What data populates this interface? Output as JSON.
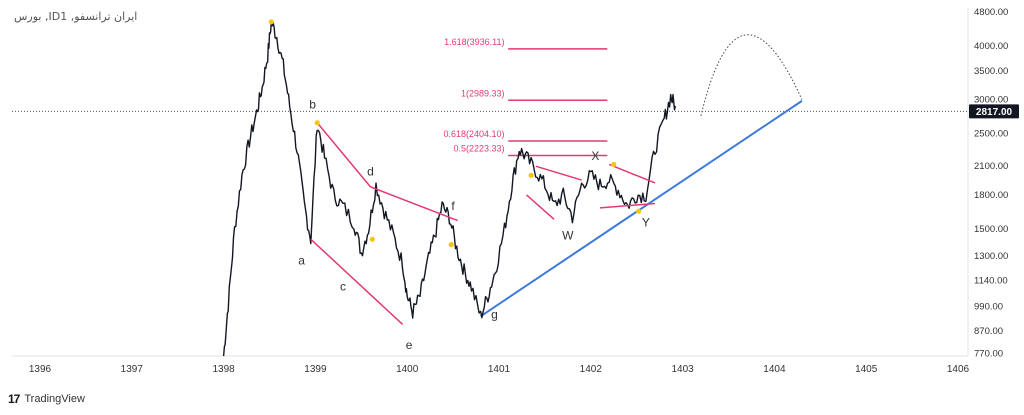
{
  "chart_data": {
    "type": "line",
    "title": "",
    "symbol_label": "بورس ,IDایران ترانسفو, 1",
    "xlabel": "",
    "ylabel": "",
    "scale": "log",
    "ylim": [
      760,
      4900
    ],
    "x_ticks": [
      "1396",
      "1397",
      "1398",
      "1399",
      "1400",
      "1401",
      "1402",
      "1403",
      "1404",
      "1405",
      "1406"
    ],
    "y_ticks": [
      "4800.00",
      "4000.00",
      "3500.00",
      "3000.00",
      "2500.00",
      "2100.00",
      "1800.00",
      "1500.00",
      "1300.00",
      "1140.00",
      "990.00",
      "870.00",
      "770.00"
    ],
    "current_price": "2817.00",
    "price_color": "#131722",
    "grid": false,
    "series": [
      {
        "color": "#131722",
        "values": [
          [
            1398.0,
            760
          ],
          [
            1398.05,
            1000
          ],
          [
            1398.12,
            1500
          ],
          [
            1398.2,
            2000
          ],
          [
            1398.28,
            2400
          ],
          [
            1398.36,
            2800
          ],
          [
            1398.42,
            3200
          ],
          [
            1398.48,
            3800
          ],
          [
            1398.52,
            4550
          ],
          [
            1398.58,
            4200
          ],
          [
            1398.65,
            3600
          ],
          [
            1398.72,
            2900
          ],
          [
            1398.8,
            2300
          ],
          [
            1398.88,
            1700
          ],
          [
            1398.95,
            1420
          ],
          [
            1399.02,
            2650
          ],
          [
            1399.1,
            2200
          ],
          [
            1399.2,
            1800
          ],
          [
            1399.3,
            1700
          ],
          [
            1399.42,
            1550
          ],
          [
            1399.5,
            1320
          ],
          [
            1399.58,
            1500
          ],
          [
            1399.66,
            1900
          ],
          [
            1399.75,
            1650
          ],
          [
            1399.85,
            1450
          ],
          [
            1399.95,
            1250
          ],
          [
            1400.0,
            1050
          ],
          [
            1400.06,
            960
          ],
          [
            1400.14,
            1050
          ],
          [
            1400.22,
            1250
          ],
          [
            1400.3,
            1450
          ],
          [
            1400.38,
            1700
          ],
          [
            1400.46,
            1600
          ],
          [
            1400.54,
            1350
          ],
          [
            1400.62,
            1200
          ],
          [
            1400.7,
            1100
          ],
          [
            1400.8,
            940
          ],
          [
            1400.88,
            1050
          ],
          [
            1400.96,
            1200
          ],
          [
            1401.06,
            1500
          ],
          [
            1401.14,
            1900
          ],
          [
            1401.22,
            2300
          ],
          [
            1401.3,
            2200
          ],
          [
            1401.4,
            2050
          ],
          [
            1401.5,
            1900
          ],
          [
            1401.6,
            1700
          ],
          [
            1401.7,
            1800
          ],
          [
            1401.8,
            1600
          ],
          [
            1401.9,
            1900
          ],
          [
            1402.0,
            2000
          ],
          [
            1402.1,
            1900
          ],
          [
            1402.2,
            1950
          ],
          [
            1402.3,
            1850
          ],
          [
            1402.4,
            1700
          ],
          [
            1402.5,
            1800
          ],
          [
            1402.6,
            1800
          ],
          [
            1402.7,
            2300
          ],
          [
            1402.8,
            2700
          ],
          [
            1402.87,
            3050
          ],
          [
            1402.92,
            2900
          ]
        ]
      }
    ],
    "projection": {
      "style": "dotted",
      "values": [
        [
          1403.2,
          2750
        ],
        [
          1403.7,
          3900
        ],
        [
          1404.3,
          3000
        ]
      ]
    },
    "trendline": {
      "color": "#3d7bd9",
      "from": [
        1400.8,
        940
      ],
      "to": [
        1404.3,
        2980
      ]
    },
    "fibonacci": {
      "color": "#e23a73",
      "levels": [
        {
          "label": "1.618(3936.11)",
          "value": 3936.11
        },
        {
          "label": "1(2989.33)",
          "value": 2989.33
        },
        {
          "label": "0.618(2404.10)",
          "value": 2404.1
        },
        {
          "label": "0.5(2223.33)",
          "value": 2223.33
        }
      ]
    },
    "wave_lines": {
      "color": "#e23a73",
      "segments": [
        [
          [
            1398.95,
            1420
          ],
          [
            1399.95,
            900
          ]
        ],
        [
          [
            1399.02,
            2650
          ],
          [
            1399.6,
            1880
          ]
        ],
        [
          [
            1399.6,
            1880
          ],
          [
            1400.55,
            1570
          ]
        ],
        [
          [
            1401.3,
            1800
          ],
          [
            1401.6,
            1580
          ]
        ],
        [
          [
            1401.4,
            2100
          ],
          [
            1401.9,
            1950
          ]
        ],
        [
          [
            1402.2,
            2120
          ],
          [
            1402.7,
            1920
          ]
        ],
        [
          [
            1402.1,
            1680
          ],
          [
            1402.7,
            1720
          ]
        ]
      ]
    },
    "annotations": [
      {
        "text": "a",
        "x": 1398.85,
        "y": 1240
      },
      {
        "text": "b",
        "x": 1398.97,
        "y": 2860
      },
      {
        "text": "c",
        "x": 1399.3,
        "y": 1080
      },
      {
        "text": "d",
        "x": 1399.6,
        "y": 2000
      },
      {
        "text": "e",
        "x": 1400.02,
        "y": 790
      },
      {
        "text": "f",
        "x": 1400.5,
        "y": 1660
      },
      {
        "text": "g",
        "x": 1400.95,
        "y": 930
      },
      {
        "text": "W",
        "x": 1401.75,
        "y": 1420
      },
      {
        "text": "X",
        "x": 1402.05,
        "y": 2170
      },
      {
        "text": "Y",
        "x": 1402.6,
        "y": 1520
      }
    ],
    "pivot_markers": {
      "color": "#f5c518",
      "points": [
        [
          1398.52,
          4550
        ],
        [
          1399.02,
          2650
        ],
        [
          1399.62,
          1420
        ],
        [
          1400.48,
          1380
        ],
        [
          1401.35,
          2000
        ],
        [
          1402.25,
          2120
        ],
        [
          1402.52,
          1650
        ]
      ]
    }
  },
  "brand": {
    "name": "TradingView",
    "logo": "17"
  }
}
